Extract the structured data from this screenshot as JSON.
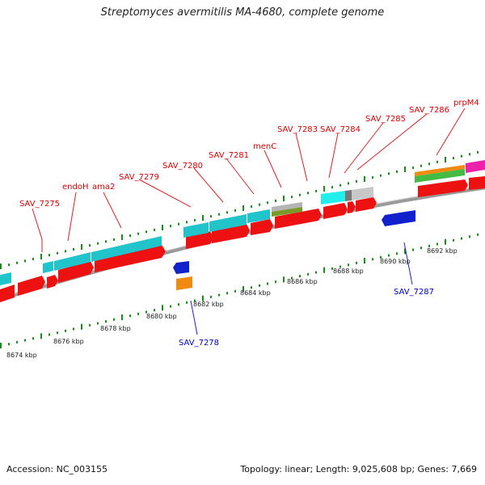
{
  "title": "Streptomyces avermitilis MA-4680, complete genome",
  "accession": "Accession: NC_003155",
  "topology": "Topology: linear; Length: 9,025,608 bp; Genes: 7,669",
  "colors": {
    "red": "#ee1111",
    "cyan": "#22c4cc",
    "lightcyan": "#22eeee",
    "gray": "#b5b5b5",
    "olive": "#7a9a2a",
    "blue": "#1122cc",
    "orange": "#f08a10",
    "green": "#44bb44",
    "magenta": "#ee22aa",
    "tick": "#1a8a1a",
    "backbone": "#9a9a9a"
  },
  "gene_labels_top": [
    {
      "text": "SAV_7275"
    },
    {
      "text": "endoH"
    },
    {
      "text": "ama2"
    },
    {
      "text": "SAV_7279"
    },
    {
      "text": "SAV_7280"
    },
    {
      "text": "SAV_7281"
    },
    {
      "text": "menC"
    },
    {
      "text": "SAV_7283"
    },
    {
      "text": "SAV_7284"
    },
    {
      "text": "SAV_7285"
    },
    {
      "text": "SAV_7286"
    },
    {
      "text": "prpM4"
    }
  ],
  "gene_labels_bottom": [
    {
      "text": "SAV_7278"
    },
    {
      "text": "SAV_7287"
    }
  ],
  "kbp_ticks": [
    "8674 kbp",
    "8676 kbp",
    "8678 kbp",
    "8680 kbp",
    "8682 kbp",
    "8684 kbp",
    "8686 kbp",
    "8688 kbp",
    "8690 kbp",
    "8692 kbp"
  ]
}
